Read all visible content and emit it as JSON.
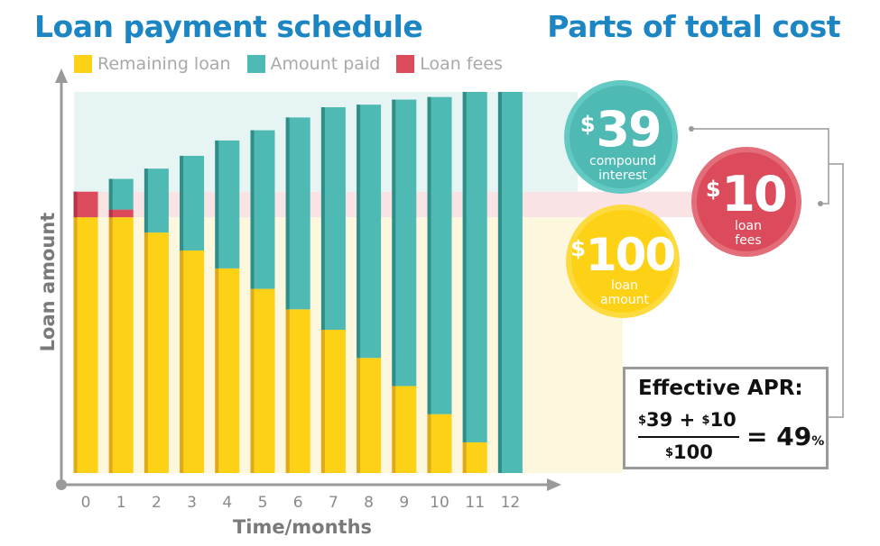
{
  "header": {
    "title_left": "Loan payment schedule",
    "title_right": "Parts of total cost"
  },
  "legend": [
    {
      "label": "Remaining loan",
      "color": "#fcd116"
    },
    {
      "label": "Amount paid",
      "color": "#4fb9b3"
    },
    {
      "label": "Loan fees",
      "color": "#db4b5c"
    }
  ],
  "colors": {
    "remaining": "#fcd116",
    "remaining_dark": "#e0a91a",
    "paid": "#4fb9b3",
    "paid_dark": "#2f8f88",
    "fees": "#db4b5c",
    "fees_dark": "#b33547",
    "bg_paid": "#e6f4f3",
    "bg_fees": "#fae3e5",
    "bg_loan": "#fdf7dd",
    "axis": "#9a9a9a"
  },
  "chart_data": {
    "type": "bar",
    "stacked": true,
    "xlabel": "Time/months",
    "ylabel": "Loan amount",
    "categories": [
      "0",
      "1",
      "2",
      "3",
      "4",
      "5",
      "6",
      "7",
      "8",
      "9",
      "10",
      "11",
      "12"
    ],
    "ylim": [
      0,
      149
    ],
    "series": [
      {
        "name": "Remaining loan",
        "values": [
          100,
          100,
          94,
          87,
          80,
          72,
          64,
          56,
          45,
          34,
          23,
          12,
          0
        ]
      },
      {
        "name": "Loan fees",
        "values": [
          10,
          3,
          0,
          0,
          0,
          0,
          0,
          0,
          0,
          0,
          0,
          0,
          0
        ]
      },
      {
        "name": "Amount paid",
        "values": [
          0,
          12,
          25,
          37,
          50,
          62,
          75,
          87,
          99,
          112,
          124,
          137,
          149
        ]
      }
    ]
  },
  "cost_parts": [
    {
      "id": "interest",
      "value": "39",
      "currency": "$",
      "label": "compound interest",
      "color": "#4fb9b3",
      "ring": "#62c9c3"
    },
    {
      "id": "fees",
      "value": "10",
      "currency": "$",
      "label": "loan fees",
      "color": "#db4b5c",
      "ring": "#e46d7a"
    },
    {
      "id": "loan",
      "value": "100",
      "currency": "$",
      "label": "loan amount",
      "color": "#fcd116",
      "ring": "#fddb3f"
    }
  ],
  "apr": {
    "title": "Effective APR:",
    "currency": "$",
    "interest": "39",
    "plus": "+",
    "fees": "10",
    "principal": "100",
    "equals": "=",
    "result": "49",
    "percent": "%"
  }
}
